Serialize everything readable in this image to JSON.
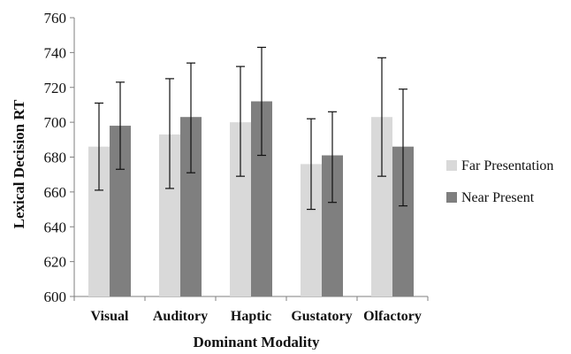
{
  "chart_data": {
    "type": "bar",
    "title": "",
    "xlabel": "Dominant Modality",
    "ylabel": "Lexical Decision RT",
    "ylim": [
      600,
      760
    ],
    "yticks": [
      600,
      620,
      640,
      660,
      680,
      700,
      720,
      740,
      760
    ],
    "grid": false,
    "legend_position": "right",
    "categories": [
      "Visual",
      "Auditory",
      "Haptic",
      "Gustatory",
      "Olfactory"
    ],
    "series": [
      {
        "name": "Far Presentation",
        "color": "#d9d9d9",
        "values": [
          686,
          693,
          700,
          676,
          703
        ],
        "error_low": [
          661,
          662,
          669,
          650,
          669
        ],
        "error_high": [
          711,
          725,
          732,
          702,
          737
        ]
      },
      {
        "name": "Near Present",
        "color": "#7f7f7f",
        "values": [
          698,
          703,
          712,
          681,
          686
        ],
        "error_low": [
          673,
          671,
          681,
          654,
          652
        ],
        "error_high": [
          723,
          734,
          743,
          706,
          719
        ]
      }
    ]
  }
}
